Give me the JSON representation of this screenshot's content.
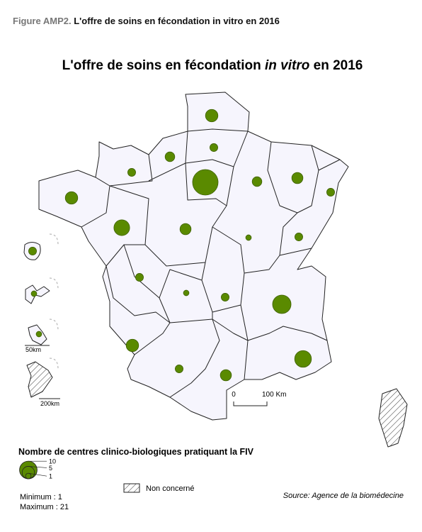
{
  "header": {
    "label": "Figure AMP2.",
    "text": "L'offre de soins en fécondation in vitro en 2016"
  },
  "map": {
    "title": {
      "before": "L'offre de soins en fécondation ",
      "italic": "in vitro",
      "after": " en 2016"
    },
    "circles": [
      5,
      2,
      3,
      2,
      21,
      3,
      4,
      2,
      5,
      8,
      4,
      1,
      2,
      2,
      2,
      1,
      2,
      11,
      1,
      1,
      5,
      9,
      2,
      4
    ],
    "color": "#5a8a00",
    "scale": {
      "zero": "0",
      "end": "100 Km"
    },
    "inset_scales": [
      "50km",
      "200km"
    ]
  },
  "legend": {
    "title": "Nombre de centres clinico-biologiques pratiquant la FIV",
    "sizes": [
      10,
      5,
      1
    ],
    "non_concerne": "Non concerné",
    "minimum": "Minimum : 1",
    "maximum": "Maximum : 21",
    "max_value": 21
  },
  "source": "Source: Agence de la biomédecine"
}
